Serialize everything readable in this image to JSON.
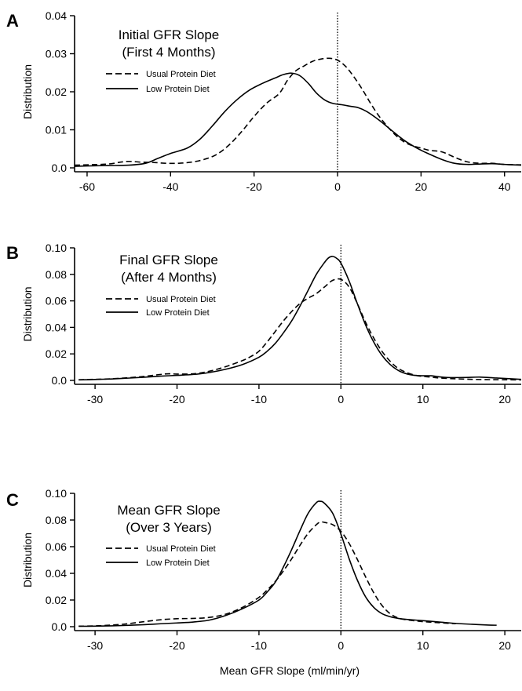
{
  "figure": {
    "xlabel": "Mean GFR Slope (ml/min/yr)"
  },
  "chart_data": [
    {
      "type": "line",
      "panel": "A",
      "title": "Initial GFR Slope",
      "subtitle": "(First 4 Months)",
      "ylabel": "Distribution",
      "xlim": [
        -63,
        44
      ],
      "ylim": [
        0,
        0.04
      ],
      "xticks": [
        -60,
        -40,
        -20,
        0,
        20,
        40
      ],
      "yticks": [
        0.0,
        0.01,
        0.02,
        0.03,
        0.04
      ],
      "ytick_labels": [
        "0.0",
        "0.01",
        "0.02",
        "0.03",
        "0.04"
      ],
      "reference_line_x": 0,
      "legend_position": "upper-left",
      "series": [
        {
          "name": "Usual Protein Diet",
          "style": "dashed",
          "points": [
            [
              -63,
              0.0007
            ],
            [
              -60,
              0.0008
            ],
            [
              -55,
              0.001
            ],
            [
              -52,
              0.0015
            ],
            [
              -50,
              0.0017
            ],
            [
              -47,
              0.0015
            ],
            [
              -44,
              0.0014
            ],
            [
              -41,
              0.0012
            ],
            [
              -38,
              0.0012
            ],
            [
              -35,
              0.0015
            ],
            [
              -32,
              0.0022
            ],
            [
              -29,
              0.0035
            ],
            [
              -26,
              0.006
            ],
            [
              -23,
              0.0095
            ],
            [
              -20,
              0.0135
            ],
            [
              -17,
              0.017
            ],
            [
              -14,
              0.0195
            ],
            [
              -12,
              0.023
            ],
            [
              -10,
              0.0255
            ],
            [
              -8,
              0.0268
            ],
            [
              -6,
              0.028
            ],
            [
              -4,
              0.0286
            ],
            [
              -2,
              0.0288
            ],
            [
              0,
              0.0283
            ],
            [
              2,
              0.0266
            ],
            [
              4,
              0.0238
            ],
            [
              6,
              0.0205
            ],
            [
              8,
              0.0168
            ],
            [
              10,
              0.0135
            ],
            [
              12,
              0.0108
            ],
            [
              14,
              0.0085
            ],
            [
              16,
              0.0068
            ],
            [
              18,
              0.0058
            ],
            [
              20,
              0.0052
            ],
            [
              22,
              0.0046
            ],
            [
              25,
              0.0042
            ],
            [
              28,
              0.0028
            ],
            [
              31,
              0.0016
            ],
            [
              34,
              0.0012
            ],
            [
              37,
              0.0012
            ],
            [
              40,
              0.0009
            ],
            [
              44,
              0.0008
            ]
          ]
        },
        {
          "name": "Low Protein Diet",
          "style": "solid",
          "points": [
            [
              -63,
              0.0004
            ],
            [
              -60,
              0.0005
            ],
            [
              -55,
              0.0006
            ],
            [
              -50,
              0.0007
            ],
            [
              -46,
              0.0012
            ],
            [
              -43,
              0.0025
            ],
            [
              -40,
              0.0038
            ],
            [
              -36,
              0.0052
            ],
            [
              -33,
              0.0075
            ],
            [
              -30,
              0.011
            ],
            [
              -27,
              0.0148
            ],
            [
              -24,
              0.018
            ],
            [
              -21,
              0.0205
            ],
            [
              -18,
              0.0222
            ],
            [
              -15,
              0.0236
            ],
            [
              -13,
              0.0245
            ],
            [
              -11,
              0.0249
            ],
            [
              -9,
              0.0242
            ],
            [
              -7,
              0.0222
            ],
            [
              -5,
              0.0196
            ],
            [
              -3,
              0.0178
            ],
            [
              -1,
              0.0169
            ],
            [
              1,
              0.0166
            ],
            [
              3,
              0.0162
            ],
            [
              5,
              0.0158
            ],
            [
              7,
              0.0148
            ],
            [
              10,
              0.0125
            ],
            [
              13,
              0.0098
            ],
            [
              16,
              0.0072
            ],
            [
              19,
              0.0052
            ],
            [
              22,
              0.0036
            ],
            [
              25,
              0.0022
            ],
            [
              28,
              0.0012
            ],
            [
              31,
              0.0009
            ],
            [
              34,
              0.001
            ],
            [
              37,
              0.0011
            ],
            [
              40,
              0.0009
            ],
            [
              44,
              0.0007
            ]
          ]
        }
      ]
    },
    {
      "type": "line",
      "panel": "B",
      "title": "Final GFR Slope",
      "subtitle": "(After 4 Months)",
      "ylabel": "Distribution",
      "xlim": [
        -32.5,
        22
      ],
      "ylim": [
        0,
        0.1
      ],
      "xticks": [
        -30,
        -20,
        -10,
        0,
        10,
        20
      ],
      "yticks": [
        0.0,
        0.02,
        0.04,
        0.06,
        0.08,
        0.1
      ],
      "ytick_labels": [
        "0.0",
        "0.02",
        "0.04",
        "0.06",
        "0.08",
        "0.10"
      ],
      "reference_line_x": 0,
      "legend_position": "upper-left",
      "series": [
        {
          "name": "Usual Protein Diet",
          "style": "dashed",
          "points": [
            [
              -32,
              0.0005
            ],
            [
              -30,
              0.0008
            ],
            [
              -28,
              0.0012
            ],
            [
              -26,
              0.002
            ],
            [
              -24,
              0.003
            ],
            [
              -22,
              0.0045
            ],
            [
              -21,
              0.005
            ],
            [
              -20,
              0.0048
            ],
            [
              -18,
              0.005
            ],
            [
              -16,
              0.007
            ],
            [
              -14,
              0.0105
            ],
            [
              -12,
              0.015
            ],
            [
              -11,
              0.018
            ],
            [
              -10,
              0.022
            ],
            [
              -9,
              0.029
            ],
            [
              -8,
              0.037
            ],
            [
              -7,
              0.045
            ],
            [
              -6,
              0.052
            ],
            [
              -5,
              0.058
            ],
            [
              -4,
              0.062
            ],
            [
              -3,
              0.0655
            ],
            [
              -2,
              0.0705
            ],
            [
              -1,
              0.0755
            ],
            [
              0,
              0.0762
            ],
            [
              1,
              0.0705
            ],
            [
              2,
              0.058
            ],
            [
              3,
              0.044
            ],
            [
              4,
              0.032
            ],
            [
              5,
              0.022
            ],
            [
              6,
              0.0145
            ],
            [
              7,
              0.009
            ],
            [
              8,
              0.006
            ],
            [
              9,
              0.004
            ],
            [
              10,
              0.003
            ],
            [
              11,
              0.0025
            ],
            [
              12,
              0.0018
            ],
            [
              14,
              0.0012
            ],
            [
              16,
              0.0008
            ],
            [
              18,
              0.0006
            ],
            [
              20,
              0.0005
            ],
            [
              22,
              0.0004
            ]
          ]
        },
        {
          "name": "Low Protein Diet",
          "style": "solid",
          "points": [
            [
              -32,
              0.0004
            ],
            [
              -30,
              0.0007
            ],
            [
              -28,
              0.0011
            ],
            [
              -26,
              0.0017
            ],
            [
              -24,
              0.0024
            ],
            [
              -22,
              0.0032
            ],
            [
              -20,
              0.0038
            ],
            [
              -18,
              0.0045
            ],
            [
              -16,
              0.006
            ],
            [
              -14,
              0.0085
            ],
            [
              -12,
              0.012
            ],
            [
              -10,
              0.0175
            ],
            [
              -9,
              0.022
            ],
            [
              -8,
              0.028
            ],
            [
              -7,
              0.036
            ],
            [
              -6,
              0.045
            ],
            [
              -5,
              0.056
            ],
            [
              -4,
              0.068
            ],
            [
              -3,
              0.08
            ],
            [
              -2,
              0.089
            ],
            [
              -1.5,
              0.0925
            ],
            [
              -1,
              0.0935
            ],
            [
              -0.5,
              0.092
            ],
            [
              0,
              0.0885
            ],
            [
              1,
              0.075
            ],
            [
              2,
              0.058
            ],
            [
              3,
              0.042
            ],
            [
              4,
              0.029
            ],
            [
              5,
              0.019
            ],
            [
              6,
              0.012
            ],
            [
              7,
              0.0075
            ],
            [
              8,
              0.005
            ],
            [
              9,
              0.0038
            ],
            [
              10,
              0.0035
            ],
            [
              11,
              0.0035
            ],
            [
              12,
              0.0027
            ],
            [
              13,
              0.0022
            ],
            [
              15,
              0.0022
            ],
            [
              17,
              0.0025
            ],
            [
              19,
              0.0018
            ],
            [
              22,
              0.0008
            ]
          ]
        }
      ]
    },
    {
      "type": "line",
      "panel": "C",
      "title": "Mean GFR Slope",
      "subtitle": "(Over 3 Years)",
      "ylabel": "Distribution",
      "xlim": [
        -32.5,
        22
      ],
      "ylim": [
        0,
        0.1
      ],
      "xticks": [
        -30,
        -20,
        -10,
        0,
        10,
        20
      ],
      "yticks": [
        0.0,
        0.02,
        0.04,
        0.06,
        0.08,
        0.1
      ],
      "ytick_labels": [
        "0.0",
        "0.02",
        "0.04",
        "0.06",
        "0.08",
        "0.10"
      ],
      "reference_line_x": 0,
      "legend_position": "upper-left",
      "series": [
        {
          "name": "Usual Protein Diet",
          "style": "dashed",
          "points": [
            [
              -32,
              0.0004
            ],
            [
              -30,
              0.0006
            ],
            [
              -28,
              0.0012
            ],
            [
              -26,
              0.0022
            ],
            [
              -24,
              0.0038
            ],
            [
              -22,
              0.0052
            ],
            [
              -20,
              0.006
            ],
            [
              -18,
              0.0062
            ],
            [
              -16,
              0.007
            ],
            [
              -14,
              0.0095
            ],
            [
              -12,
              0.0145
            ],
            [
              -10,
              0.022
            ],
            [
              -9,
              0.0275
            ],
            [
              -8,
              0.034
            ],
            [
              -7,
              0.042
            ],
            [
              -6,
              0.051
            ],
            [
              -5,
              0.061
            ],
            [
              -4,
              0.07
            ],
            [
              -3,
              0.0765
            ],
            [
              -2.5,
              0.0785
            ],
            [
              -2,
              0.0782
            ],
            [
              -1,
              0.0765
            ],
            [
              0,
              0.0715
            ],
            [
              1,
              0.0625
            ],
            [
              2,
              0.0505
            ],
            [
              3,
              0.0375
            ],
            [
              4,
              0.0255
            ],
            [
              5,
              0.016
            ],
            [
              6,
              0.0098
            ],
            [
              7,
              0.0065
            ],
            [
              8,
              0.0052
            ],
            [
              10,
              0.0038
            ],
            [
              12,
              0.003
            ],
            [
              14,
              0.0022
            ]
          ]
        },
        {
          "name": "Low Protein Diet",
          "style": "solid",
          "points": [
            [
              -32,
              0.0003
            ],
            [
              -30,
              0.0004
            ],
            [
              -28,
              0.0006
            ],
            [
              -26,
              0.001
            ],
            [
              -24,
              0.0015
            ],
            [
              -22,
              0.0022
            ],
            [
              -20,
              0.0028
            ],
            [
              -18,
              0.0035
            ],
            [
              -16,
              0.005
            ],
            [
              -14,
              0.0085
            ],
            [
              -12,
              0.0135
            ],
            [
              -10,
              0.02
            ],
            [
              -9,
              0.026
            ],
            [
              -8,
              0.0335
            ],
            [
              -7,
              0.045
            ],
            [
              -6,
              0.058
            ],
            [
              -5,
              0.072
            ],
            [
              -4,
              0.085
            ],
            [
              -3,
              0.093
            ],
            [
              -2.5,
              0.094
            ],
            [
              -2,
              0.0925
            ],
            [
              -1,
              0.085
            ],
            [
              0,
              0.0695
            ],
            [
              1,
              0.051
            ],
            [
              2,
              0.035
            ],
            [
              3,
              0.0225
            ],
            [
              4,
              0.0145
            ],
            [
              5,
              0.0098
            ],
            [
              6,
              0.0075
            ],
            [
              7,
              0.0062
            ],
            [
              8,
              0.0055
            ],
            [
              10,
              0.0045
            ],
            [
              12,
              0.0035
            ],
            [
              14,
              0.0025
            ],
            [
              16,
              0.0018
            ],
            [
              18,
              0.0012
            ],
            [
              19,
              0.0011
            ]
          ]
        }
      ]
    }
  ]
}
